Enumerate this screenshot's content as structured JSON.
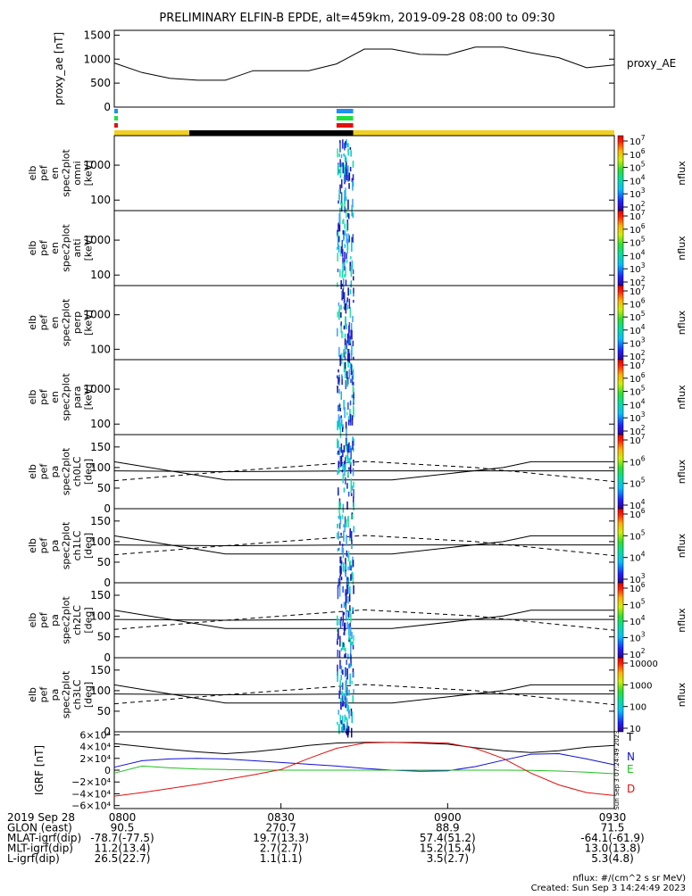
{
  "title": "PRELIMINARY ELFIN-B EPDE, alt=459km, 2019-09-28 08:00 to 09:30",
  "colors": {
    "ae_line": "#000000",
    "bar_blue": "#1f8ff0",
    "bar_green": "#20e040",
    "bar_red": "#e01010",
    "sun_yellow": "#f0d020",
    "shadow_black": "#000000",
    "T": "#000000",
    "N": "#1010d0",
    "E": "#20c020",
    "D": "#e01010"
  },
  "chart_data": [
    {
      "type": "line",
      "name": "proxy_ae",
      "ylabel": "proxy_ae [nT]",
      "ylim": [
        0,
        1600
      ],
      "yticks": [
        "1500",
        "1000",
        "500",
        "0"
      ],
      "ytick_values": [
        1500,
        1000,
        500,
        0
      ],
      "legend_label": "proxy_AE",
      "x_minutes": [
        0,
        5,
        10,
        15,
        20,
        25,
        30,
        35,
        40,
        45,
        50,
        55,
        60,
        65,
        70,
        75,
        80,
        85,
        90
      ],
      "values": [
        920,
        720,
        600,
        560,
        560,
        760,
        760,
        760,
        900,
        1210,
        1210,
        1100,
        1090,
        1250,
        1250,
        1130,
        1030,
        820,
        880
      ]
    },
    {
      "type": "heatmap",
      "name": "omni",
      "ylabel": [
        "elb",
        "pef",
        "en",
        "spec2plot",
        "omni",
        "[keV]"
      ],
      "yticks": [
        "1000",
        "100"
      ],
      "ytick_values": [
        1000,
        100
      ],
      "ylim": [
        50,
        7000
      ],
      "yscale": "log",
      "colorbar_ticks": [
        "10^7",
        "10^6",
        "10^5",
        "10^4",
        "10^3",
        "10^2"
      ],
      "zlabel": "nflux"
    },
    {
      "type": "heatmap",
      "name": "anti",
      "ylabel": [
        "elb",
        "pef",
        "en",
        "spec2plot",
        "anti",
        "[keV]"
      ],
      "yticks": [
        "1000",
        "100"
      ],
      "ytick_values": [
        1000,
        100
      ],
      "ylim": [
        50,
        7000
      ],
      "yscale": "log",
      "colorbar_ticks": [
        "10^7",
        "10^6",
        "10^5",
        "10^4",
        "10^3",
        "10^2"
      ],
      "zlabel": "nflux"
    },
    {
      "type": "heatmap",
      "name": "perp",
      "ylabel": [
        "elb",
        "pef",
        "en",
        "spec2plot",
        "perp",
        "[keV]"
      ],
      "yticks": [
        "1000",
        "100"
      ],
      "ytick_values": [
        1000,
        100
      ],
      "ylim": [
        50,
        7000
      ],
      "yscale": "log",
      "colorbar_ticks": [
        "10^7",
        "10^6",
        "10^5",
        "10^4",
        "10^3",
        "10^2"
      ],
      "zlabel": "nflux"
    },
    {
      "type": "heatmap",
      "name": "para",
      "ylabel": [
        "elb",
        "pef",
        "en",
        "spec2plot",
        "para",
        "[keV]"
      ],
      "yticks": [
        "1000",
        "100"
      ],
      "ytick_values": [
        1000,
        100
      ],
      "ylim": [
        50,
        7000
      ],
      "yscale": "log",
      "colorbar_ticks": [
        "10^7",
        "10^6",
        "10^5",
        "10^4",
        "10^3",
        "10^2"
      ],
      "zlabel": "nflux"
    },
    {
      "type": "heatmap",
      "name": "ch0LC",
      "ylabel": [
        "elb",
        "pef",
        "pa",
        "spec2plot",
        "ch0LC",
        "[deg]"
      ],
      "yticks": [
        "150",
        "100",
        "50",
        "0"
      ],
      "ytick_values": [
        150,
        100,
        50,
        0
      ],
      "ylim": [
        0,
        180
      ],
      "colorbar_ticks": [
        "10^7",
        "10^6",
        "10^5",
        "10^4"
      ],
      "zlabel": "nflux"
    },
    {
      "type": "heatmap",
      "name": "ch1LC",
      "ylabel": [
        "elb",
        "pef",
        "pa",
        "spec2plot",
        "ch1LC",
        "[deg]"
      ],
      "yticks": [
        "150",
        "100",
        "50",
        "0"
      ],
      "ytick_values": [
        150,
        100,
        50,
        0
      ],
      "ylim": [
        0,
        180
      ],
      "colorbar_ticks": [
        "10^6",
        "10^5",
        "10^4",
        "10^3"
      ],
      "zlabel": "nflux"
    },
    {
      "type": "heatmap",
      "name": "ch2LC",
      "ylabel": [
        "elb",
        "pef",
        "pa",
        "spec2plot",
        "ch2LC",
        "[deg]"
      ],
      "yticks": [
        "150",
        "100",
        "50",
        "0"
      ],
      "ytick_values": [
        150,
        100,
        50,
        0
      ],
      "ylim": [
        0,
        180
      ],
      "colorbar_ticks": [
        "10^6",
        "10^5",
        "10^4",
        "10^3",
        "10^2"
      ],
      "zlabel": "nflux"
    },
    {
      "type": "heatmap",
      "name": "ch3LC",
      "ylabel": [
        "elb",
        "pef",
        "pa",
        "spec2plot",
        "ch3LC",
        "[deg]"
      ],
      "yticks": [
        "150",
        "100",
        "50",
        "0"
      ],
      "ytick_values": [
        150,
        100,
        50,
        0
      ],
      "ylim": [
        0,
        180
      ],
      "colorbar_ticks": [
        "10000",
        "1000",
        "100",
        "10"
      ],
      "zlabel": "nflux"
    },
    {
      "type": "line",
      "name": "IGRF",
      "ylabel": "IGRF [nT]",
      "yticks": [
        "6×10⁴",
        "4×10⁴",
        "2×10⁴",
        "0",
        "−2×10⁴",
        "−4×10⁴",
        "−6×10⁴"
      ],
      "ytick_values": [
        60000,
        40000,
        20000,
        0,
        -20000,
        -40000,
        -60000
      ],
      "ylim": [
        -65000,
        65000
      ],
      "legend": [
        "T",
        "N",
        "E",
        "D"
      ],
      "x_minutes": [
        0,
        5,
        10,
        15,
        20,
        25,
        30,
        35,
        40,
        45,
        50,
        55,
        60,
        65,
        70,
        75,
        80,
        85,
        90
      ],
      "series": [
        {
          "name": "T",
          "values": [
            45000,
            40000,
            35000,
            31000,
            28000,
            31000,
            36000,
            42000,
            46000,
            47000,
            47000,
            46000,
            44000,
            38000,
            33000,
            30000,
            33000,
            39000,
            42000
          ]
        },
        {
          "name": "N",
          "values": [
            5000,
            16000,
            19000,
            20000,
            19000,
            16000,
            13000,
            10000,
            7000,
            3000,
            0,
            -2000,
            -1000,
            6000,
            17000,
            27000,
            28000,
            19000,
            9000
          ]
        },
        {
          "name": "E",
          "values": [
            -5000,
            7000,
            4000,
            2000,
            1000,
            500,
            0,
            0,
            0,
            0,
            0,
            0,
            0,
            0,
            0,
            -500,
            -1500,
            -3500,
            -6000
          ]
        },
        {
          "name": "D",
          "values": [
            -44000,
            -38000,
            -31000,
            -24000,
            -16000,
            -8000,
            1000,
            20000,
            37000,
            46000,
            47000,
            47000,
            46000,
            37000,
            20000,
            -5000,
            -25000,
            -38000,
            -43000
          ]
        }
      ]
    }
  ],
  "pa_lines": {
    "solid_upper": [
      [
        0,
        114
      ],
      [
        20,
        70
      ],
      [
        30,
        70
      ],
      [
        45,
        70
      ],
      [
        50,
        70
      ],
      [
        70,
        100
      ],
      [
        75,
        114
      ],
      [
        90,
        114
      ]
    ],
    "solid_lower": [
      [
        0,
        92
      ],
      [
        20,
        90
      ],
      [
        45,
        92
      ],
      [
        90,
        92
      ]
    ],
    "dashed": [
      [
        0,
        68
      ],
      [
        20,
        90
      ],
      [
        45,
        115
      ],
      [
        65,
        100
      ],
      [
        90,
        66
      ]
    ]
  },
  "xaxis": {
    "ticks": [
      "0800",
      "0830",
      "0900",
      "0930"
    ],
    "tick_minutes": [
      0,
      30,
      60,
      90
    ]
  },
  "footer_rows": [
    {
      "label": "2019 Sep 28",
      "values": [
        "0800",
        "0830",
        "0900",
        "0930"
      ]
    },
    {
      "label": "GLON (east)",
      "values": [
        "90.5",
        "270.7",
        "88.9",
        "71.5"
      ]
    },
    {
      "label": "MLAT-igrf(dip)",
      "values": [
        "-78.7(-77.5)",
        "19.7(13.3)",
        "57.4(51.2)",
        "-64.1(-61.9)"
      ]
    },
    {
      "label": "MLT-igrf(dip)",
      "values": [
        "11.2(13.4)",
        "2.7(2.7)",
        "15.2(15.4)",
        "13.0(13.8)"
      ]
    },
    {
      "label": "L-igrf(dip)",
      "values": [
        "26.5(22.7)",
        "1.1(1.1)",
        "3.5(2.7)",
        "5.3(4.8)"
      ]
    }
  ],
  "footnote_units": "nflux: #/(cm^2 s sr MeV)",
  "footnote_created": "Created: Sun Sep  3 14:24:49 2023",
  "side_stamp": "Sun Sep  3 07:24:49 2023"
}
